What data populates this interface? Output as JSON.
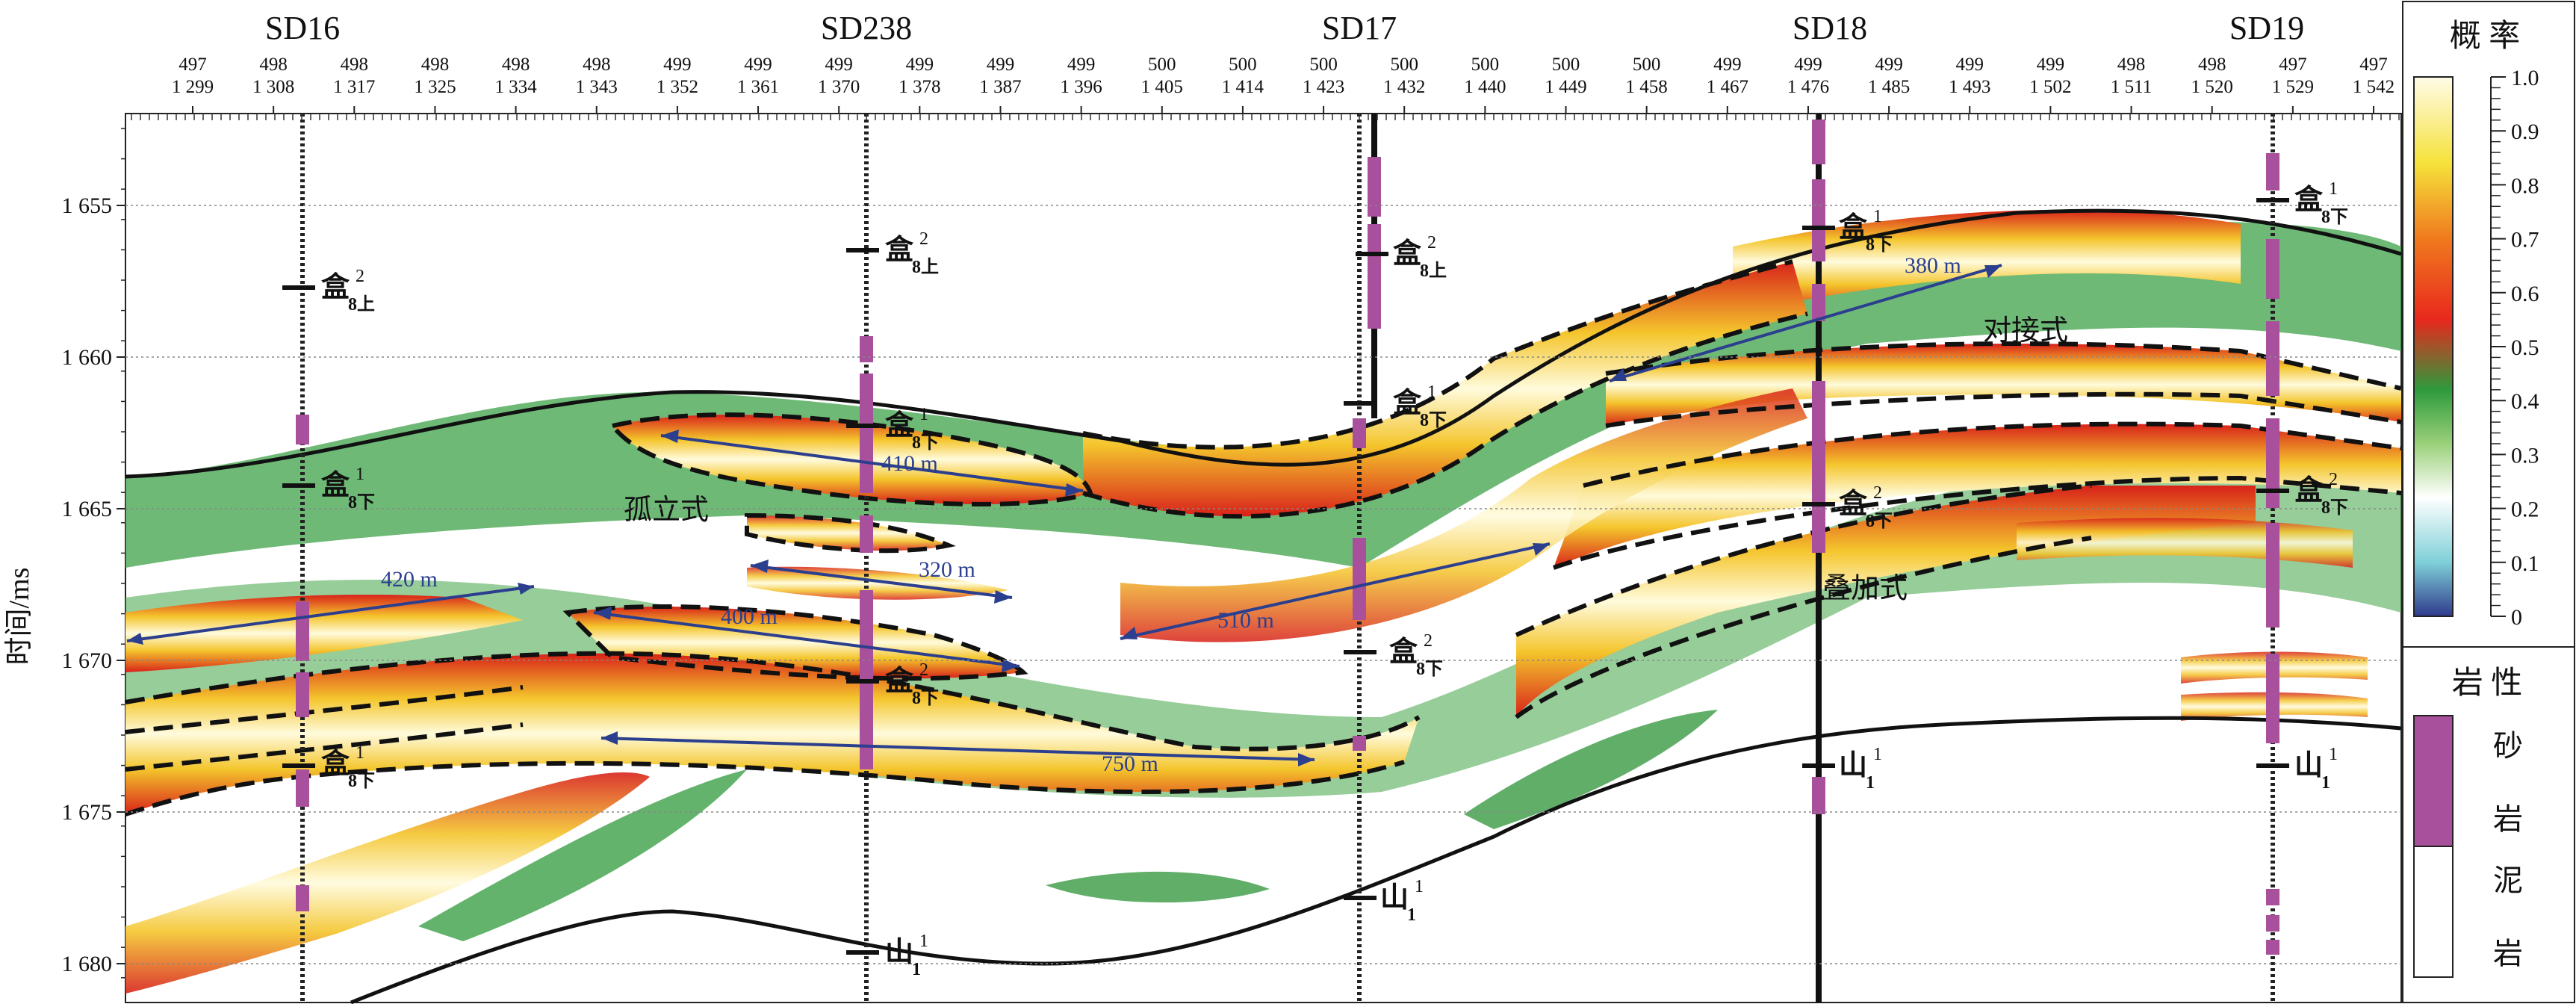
{
  "section": {
    "y_axis_label": "时间/ms",
    "y_ticks": [
      "1 655",
      "1 660",
      "1 665",
      "1 670",
      "1 675",
      "1 680"
    ],
    "trace_numbers": [
      {
        "inline": "497",
        "trace": "1 299"
      },
      {
        "inline": "498",
        "trace": "1 308"
      },
      {
        "inline": "498",
        "trace": "1 317"
      },
      {
        "inline": "498",
        "trace": "1 325"
      },
      {
        "inline": "498",
        "trace": "1 334"
      },
      {
        "inline": "498",
        "trace": "1 343"
      },
      {
        "inline": "499",
        "trace": "1 352"
      },
      {
        "inline": "499",
        "trace": "1 361"
      },
      {
        "inline": "499",
        "trace": "1 370"
      },
      {
        "inline": "499",
        "trace": "1 378"
      },
      {
        "inline": "499",
        "trace": "1 387"
      },
      {
        "inline": "499",
        "trace": "1 396"
      },
      {
        "inline": "500",
        "trace": "1 405"
      },
      {
        "inline": "500",
        "trace": "1 414"
      },
      {
        "inline": "500",
        "trace": "1 423"
      },
      {
        "inline": "500",
        "trace": "1 432"
      },
      {
        "inline": "500",
        "trace": "1 440"
      },
      {
        "inline": "500",
        "trace": "1 449"
      },
      {
        "inline": "500",
        "trace": "1 458"
      },
      {
        "inline": "499",
        "trace": "1 467"
      },
      {
        "inline": "499",
        "trace": "1 476"
      },
      {
        "inline": "499",
        "trace": "1 485"
      },
      {
        "inline": "499",
        "trace": "1 493"
      },
      {
        "inline": "499",
        "trace": "1 502"
      },
      {
        "inline": "498",
        "trace": "1 511"
      },
      {
        "inline": "498",
        "trace": "1 520"
      },
      {
        "inline": "497",
        "trace": "1 529"
      },
      {
        "inline": "497",
        "trace": "1 542"
      }
    ],
    "wells": [
      "SD16",
      "SD238",
      "SD17",
      "SD18",
      "SD19"
    ],
    "horizon_base": "盒",
    "horizon_sub_8up": "8上",
    "horizon_sub_8down": "8下",
    "horizon_shan": "山",
    "horizon_sub_1": "1",
    "horizon_sup_1": "1",
    "horizon_sup_2": "2",
    "distances": [
      "420 m",
      "410 m",
      "320 m",
      "400 m",
      "510 m",
      "750 m",
      "380 m"
    ],
    "pattern_labels": {
      "isolated": "孤立式",
      "butted": "对接式",
      "stacked": "叠加式"
    }
  },
  "legend": {
    "probability_title": "概 率",
    "probability_ticks": [
      "1.0",
      "0.9",
      "0.8",
      "0.7",
      "0.6",
      "0.5",
      "0.4",
      "0.3",
      "0.2",
      "0.1",
      "0"
    ],
    "lithology_title": "岩 性",
    "sand_label_1": "砂",
    "sand_label_2": "岩",
    "mud_label_1": "泥",
    "mud_label_2": "岩"
  },
  "colors": {
    "sand": "#a8509b",
    "vector": "#2b3f8e",
    "outline": "#111111"
  }
}
